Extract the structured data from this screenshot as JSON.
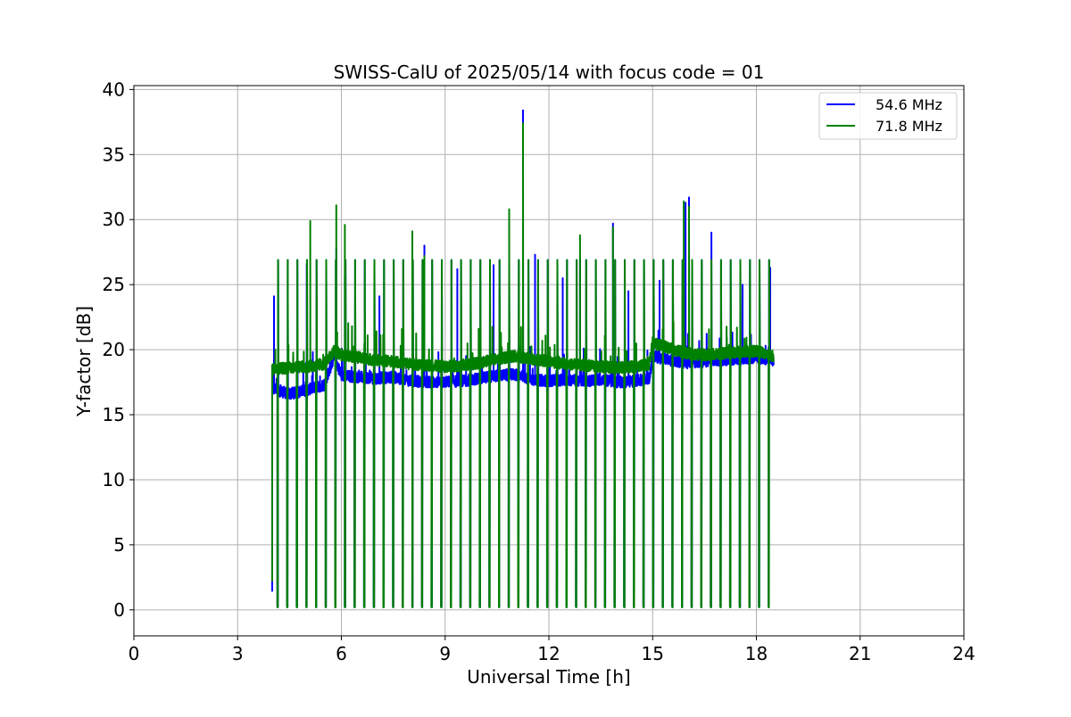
{
  "chart_data": {
    "type": "line",
    "title": "SWISS-CalU of 2025/05/14 with focus code = 01",
    "xlabel": "Universal Time [h]",
    "ylabel": "Y-factor [dB]",
    "xlim": [
      0,
      24
    ],
    "ylim": [
      -2,
      40.3
    ],
    "xticks": [
      0,
      3,
      6,
      9,
      12,
      15,
      18,
      21,
      24
    ],
    "xtick_labels": [
      "0",
      "3",
      "6",
      "9",
      "12",
      "15",
      "18",
      "21",
      "24"
    ],
    "yticks": [
      0,
      5,
      10,
      15,
      20,
      25,
      30,
      35,
      40
    ],
    "ytick_labels": [
      "0",
      "5",
      "10",
      "15",
      "20",
      "25",
      "30",
      "35",
      "40"
    ],
    "grid": true,
    "legend": {
      "placement": "upper-right"
    },
    "time_range_h": [
      4.0,
      18.5
    ],
    "calibration_dip_value_db": 0.2,
    "spike_top_value_db": 26.9,
    "series": [
      {
        "name": "54.6 MHz",
        "color": "#0000ff",
        "baseline_x": [
          4.0,
          4.5,
          5.0,
          5.5,
          5.8,
          6.0,
          6.5,
          7.0,
          7.5,
          8.0,
          8.5,
          9.0,
          9.5,
          10.0,
          10.5,
          11.0,
          11.5,
          12.0,
          12.5,
          13.0,
          13.5,
          14.0,
          14.5,
          14.9,
          15.0,
          15.5,
          16.0,
          16.5,
          17.0,
          17.5,
          18.0,
          18.5
        ],
        "baseline_y": [
          17.0,
          16.6,
          16.9,
          17.3,
          19.5,
          18.0,
          17.9,
          17.8,
          17.9,
          17.6,
          17.5,
          17.5,
          17.6,
          17.8,
          18.0,
          18.1,
          17.7,
          17.6,
          17.7,
          17.6,
          17.7,
          17.5,
          17.6,
          17.8,
          19.5,
          19.2,
          19.0,
          19.1,
          19.2,
          19.3,
          19.4,
          19.2
        ],
        "peaks_x": [
          4.05,
          5.0,
          5.85,
          6.1,
          7.1,
          8.05,
          8.4,
          9.35,
          10.4,
          10.85,
          11.25,
          11.6,
          12.4,
          12.9,
          13.85,
          14.3,
          15.2,
          15.95,
          16.05,
          16.7,
          17.6,
          18.4
        ],
        "peaks_y": [
          24.1,
          26.6,
          27.8,
          25.6,
          24.1,
          24.6,
          28.0,
          26.2,
          26.5,
          27.6,
          38.4,
          27.3,
          25.5,
          26.9,
          29.7,
          24.5,
          25.3,
          31.3,
          31.7,
          29.0,
          25.0,
          26.3
        ]
      },
      {
        "name": "71.8 MHz",
        "color": "#008000",
        "baseline_x": [
          4.0,
          4.5,
          5.0,
          5.5,
          5.8,
          6.0,
          6.5,
          7.0,
          7.5,
          8.0,
          8.5,
          9.0,
          9.5,
          10.0,
          10.5,
          11.0,
          11.5,
          12.0,
          12.5,
          13.0,
          13.5,
          14.0,
          14.5,
          14.9,
          15.0,
          15.5,
          16.0,
          16.5,
          17.0,
          17.5,
          18.0,
          18.5
        ],
        "baseline_y": [
          18.5,
          18.6,
          18.7,
          18.9,
          19.9,
          19.6,
          19.4,
          19.2,
          19.1,
          18.9,
          18.8,
          18.7,
          18.8,
          19.0,
          19.3,
          19.5,
          19.3,
          19.1,
          18.9,
          18.8,
          18.7,
          18.6,
          18.7,
          18.9,
          20.5,
          20.1,
          19.7,
          19.6,
          19.7,
          19.8,
          19.9,
          19.5
        ],
        "peaks_x": [
          5.1,
          5.85,
          6.1,
          8.05,
          8.4,
          10.85,
          11.25,
          12.9,
          13.85,
          15.9,
          16.05
        ],
        "peaks_y": [
          29.9,
          31.1,
          29.6,
          29.1,
          27.2,
          30.8,
          37.4,
          28.8,
          29.4,
          31.4,
          31.0
        ]
      }
    ]
  }
}
